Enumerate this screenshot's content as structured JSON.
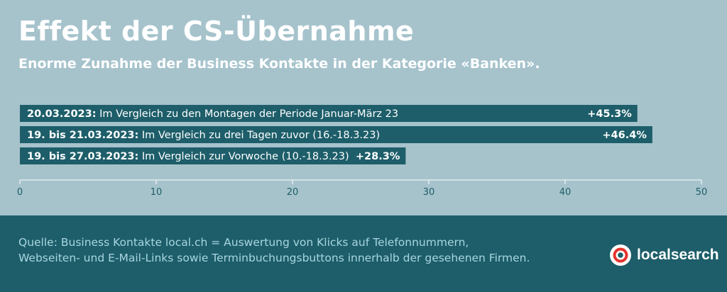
{
  "header": {
    "title": "Effekt der CS-Übernahme",
    "subtitle": "Enorme Zunahme der Business Kontakte in der Kategorie «Banken»."
  },
  "chart_data": {
    "type": "bar",
    "orientation": "horizontal",
    "categories": [
      {
        "bold": "20.03.2023:",
        "text": " Im Vergleich zu den Montagen der Periode Januar-März 23"
      },
      {
        "bold": "19. bis 21.03.2023:",
        "text": " Im Vergleich zu drei Tagen zuvor (16.-18.3.23)"
      },
      {
        "bold": "19. bis 27.03.2023:",
        "text": " Im Vergleich zur Vorwoche (10.-18.3.23)"
      }
    ],
    "values": [
      45.3,
      46.4,
      28.3
    ],
    "data_labels": [
      "+45.3%",
      "+46.4%",
      "+28.3%"
    ],
    "xlim": [
      0,
      50
    ],
    "xticks": [
      0,
      10,
      20,
      30,
      40,
      50
    ],
    "bar_color": "#1d5e6a",
    "grid": false
  },
  "footer": {
    "source_line1": "Quelle: Business Kontakte local.ch = Auswertung von Klicks auf Telefonnummern,",
    "source_line2": "Webseiten- und E-Mail-Links sowie Terminbuchungsbuttons innerhalb der gesehenen Firmen.",
    "logo_text": "localsearch"
  },
  "colors": {
    "background": "#a6c3cc",
    "bar": "#1d5e6a",
    "footer_bg": "#1d5e6a",
    "axis": "#ffffff",
    "tick_label": "#1d5e6a"
  }
}
